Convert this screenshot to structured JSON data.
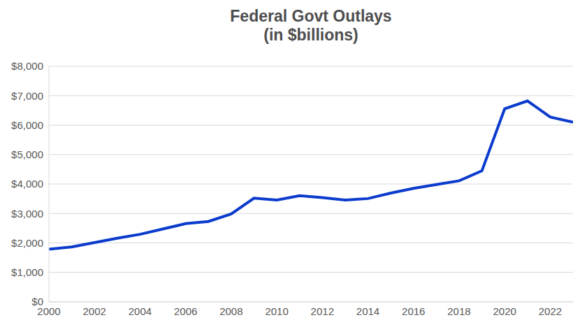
{
  "chart_data": {
    "type": "line",
    "title": "Federal Govt Outlays",
    "subtitle": "(in $billions)",
    "x": [
      2000,
      2001,
      2002,
      2003,
      2004,
      2005,
      2006,
      2007,
      2008,
      2009,
      2010,
      2011,
      2012,
      2013,
      2014,
      2015,
      2016,
      2017,
      2018,
      2019,
      2020,
      2021,
      2022,
      2023
    ],
    "values": [
      1789,
      1863,
      2011,
      2160,
      2293,
      2472,
      2655,
      2729,
      2983,
      3518,
      3457,
      3603,
      3537,
      3455,
      3506,
      3692,
      3853,
      3982,
      4109,
      4447,
      6554,
      6822,
      6273,
      6100
    ],
    "color": "#0b3bcc",
    "xlim": [
      2000,
      2023
    ],
    "xticks": [
      2000,
      2002,
      2004,
      2006,
      2008,
      2010,
      2012,
      2014,
      2016,
      2018,
      2020,
      2022
    ],
    "ylim": [
      0,
      8000
    ],
    "yticks": [
      {
        "value": 0,
        "label": "$0"
      },
      {
        "value": 1000,
        "label": "$1,000"
      },
      {
        "value": 2000,
        "label": "$2,000"
      },
      {
        "value": 3000,
        "label": "$3,000"
      },
      {
        "value": 4000,
        "label": "$4,000"
      },
      {
        "value": 5000,
        "label": "$5,000"
      },
      {
        "value": 6000,
        "label": "$6,000"
      },
      {
        "value": 7000,
        "label": "$7,000"
      },
      {
        "value": 8000,
        "label": "$8,000"
      }
    ],
    "grid": true
  }
}
